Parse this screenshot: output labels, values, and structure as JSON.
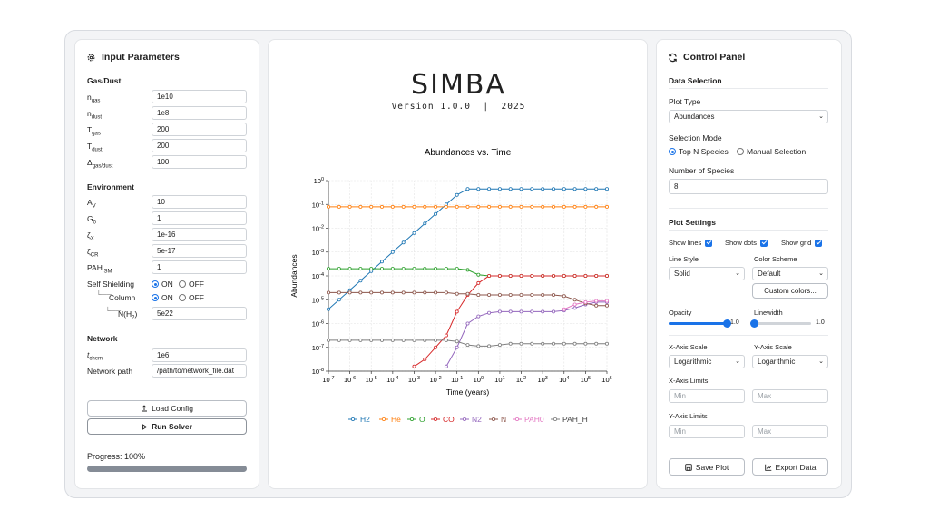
{
  "left": {
    "title": "Input Parameters",
    "gas_dust": {
      "heading": "Gas/Dust",
      "params": [
        {
          "sym": "n",
          "sub": "gas",
          "value": "1e10"
        },
        {
          "sym": "n",
          "sub": "dust",
          "value": "1e8"
        },
        {
          "sym": "T",
          "sub": "gas",
          "value": "200"
        },
        {
          "sym": "T",
          "sub": "dust",
          "value": "200"
        },
        {
          "sym": "Δ",
          "sub": "gas/dust",
          "value": "100"
        }
      ]
    },
    "environment": {
      "heading": "Environment",
      "params": [
        {
          "sym": "A",
          "sub": "V",
          "value": "10"
        },
        {
          "sym": "G",
          "sub": "0",
          "value": "1"
        },
        {
          "sym": "ζ",
          "sub": "X",
          "value": "1e-16"
        },
        {
          "sym": "ζ",
          "sub": "CR",
          "value": "5e-17"
        },
        {
          "sym": "PAH",
          "sub": "ISM",
          "value": "1"
        }
      ],
      "self_shielding_label": "Self Shielding",
      "column_label": "Column",
      "nh2_label": "N(H",
      "nh2_sub": "2",
      "nh2_close": ")",
      "nh2_value": "5e22",
      "on_label": "ON",
      "off_label": "OFF"
    },
    "network": {
      "heading": "Network",
      "tchem_sym": "t",
      "tchem_sub": "chem",
      "tchem_value": "1e6",
      "path_label": "Network path",
      "path_value": "/path/to/network_file.dat"
    },
    "load_config_label": "Load Config",
    "run_solver_label": "Run Solver",
    "progress_text": "Progress: 100%",
    "progress_fraction": 1.0
  },
  "header": {
    "app_name": "SIMBA",
    "version_line": "Version 1.0.0  |  2025"
  },
  "chart_data": {
    "type": "line",
    "title": "Abundances vs. Time",
    "xlabel": "Time (years)",
    "ylabel": "Abundances",
    "xscale": "log",
    "yscale": "log",
    "xlim": [
      -7,
      6
    ],
    "ylim": [
      -8,
      0
    ],
    "x_ticks": [
      "-7",
      "-6",
      "-5",
      "-4",
      "-3",
      "-2",
      "-1",
      "0",
      "1",
      "2",
      "3",
      "4",
      "5",
      "6"
    ],
    "y_ticks": [
      "0",
      "-1",
      "-2",
      "-3",
      "-4",
      "-5",
      "-6",
      "-7",
      "-8"
    ],
    "x_logs": [
      -7,
      -6.5,
      -6,
      -5.5,
      -5,
      -4.5,
      -4,
      -3.5,
      -3,
      -2.5,
      -2,
      -1.5,
      -1,
      -0.5,
      0,
      0.5,
      1,
      1.5,
      2,
      2.5,
      3,
      3.5,
      4,
      4.5,
      5,
      5.5,
      6
    ],
    "grid": true,
    "legend_position": "bottom",
    "series": [
      {
        "name": "H2",
        "color": "#1f77b4",
        "log_y": [
          -5.4,
          -5.0,
          -4.6,
          -4.2,
          -3.8,
          -3.4,
          -3.0,
          -2.6,
          -2.2,
          -1.8,
          -1.4,
          -1.0,
          -0.6,
          -0.35,
          -0.35,
          -0.35,
          -0.35,
          -0.35,
          -0.35,
          -0.35,
          -0.35,
          -0.35,
          -0.35,
          -0.35,
          -0.35,
          -0.35,
          -0.35
        ]
      },
      {
        "name": "He",
        "color": "#ff7f0e",
        "log_y": [
          -1.1,
          -1.1,
          -1.1,
          -1.1,
          -1.1,
          -1.1,
          -1.1,
          -1.1,
          -1.1,
          -1.1,
          -1.1,
          -1.1,
          -1.1,
          -1.1,
          -1.1,
          -1.1,
          -1.1,
          -1.1,
          -1.1,
          -1.1,
          -1.1,
          -1.1,
          -1.1,
          -1.1,
          -1.1,
          -1.1,
          -1.1
        ]
      },
      {
        "name": "O",
        "color": "#2ca02c",
        "log_y": [
          -3.7,
          -3.7,
          -3.7,
          -3.7,
          -3.7,
          -3.7,
          -3.7,
          -3.7,
          -3.7,
          -3.7,
          -3.7,
          -3.7,
          -3.7,
          -3.75,
          -3.95,
          -4.0,
          -4.0,
          -4.0,
          -4.0,
          -4.0,
          -4.0,
          -4.0,
          -4.0,
          -4.0,
          -4.0,
          -4.0,
          -4.0
        ]
      },
      {
        "name": "CO",
        "color": "#d62728",
        "log_y": [
          null,
          null,
          null,
          null,
          null,
          null,
          null,
          null,
          -7.8,
          -7.5,
          -7.0,
          -6.5,
          -5.5,
          -4.8,
          -4.3,
          -4.0,
          -4.0,
          -4.0,
          -4.0,
          -4.0,
          -4.0,
          -4.0,
          -4.0,
          -4.0,
          -4.0,
          -4.0,
          -4.0
        ]
      },
      {
        "name": "N2",
        "color": "#9467bd",
        "log_y": [
          null,
          null,
          null,
          null,
          null,
          null,
          null,
          null,
          null,
          null,
          null,
          -7.8,
          -7.0,
          -6.0,
          -5.7,
          -5.55,
          -5.5,
          -5.5,
          -5.5,
          -5.5,
          -5.5,
          -5.5,
          -5.45,
          -5.35,
          -5.2,
          -5.1,
          -5.1
        ]
      },
      {
        "name": "N",
        "color": "#8c564b",
        "log_y": [
          -4.7,
          -4.7,
          -4.7,
          -4.7,
          -4.7,
          -4.7,
          -4.7,
          -4.7,
          -4.7,
          -4.7,
          -4.7,
          -4.7,
          -4.75,
          -4.75,
          -4.8,
          -4.8,
          -4.8,
          -4.8,
          -4.8,
          -4.8,
          -4.8,
          -4.8,
          -4.85,
          -5.0,
          -5.15,
          -5.25,
          -5.25
        ]
      },
      {
        "name": "PAH0",
        "color": "#e377c2",
        "log_y": [
          null,
          null,
          null,
          null,
          null,
          null,
          null,
          null,
          null,
          null,
          null,
          null,
          null,
          null,
          null,
          null,
          null,
          null,
          null,
          null,
          null,
          null,
          -5.4,
          -5.2,
          -5.1,
          -5.05,
          -5.05
        ]
      },
      {
        "name": "PAH_H",
        "color": "#7f7f7f",
        "log_y": [
          -6.7,
          -6.7,
          -6.7,
          -6.7,
          -6.7,
          -6.7,
          -6.7,
          -6.7,
          -6.7,
          -6.7,
          -6.7,
          -6.7,
          -6.75,
          -6.9,
          -6.95,
          -6.95,
          -6.9,
          -6.85,
          -6.85,
          -6.85,
          -6.85,
          -6.85,
          -6.85,
          -6.85,
          -6.85,
          -6.85,
          -6.85
        ]
      }
    ]
  },
  "right": {
    "title": "Control Panel",
    "data_selection_heading": "Data Selection",
    "plot_type_label": "Plot Type",
    "plot_type_value": "Abundances",
    "selection_mode_label": "Selection Mode",
    "mode_top_n": "Top N Species",
    "mode_manual": "Manual Selection",
    "num_species_label": "Number of Species",
    "num_species_value": "8",
    "plot_settings_heading": "Plot Settings",
    "show_lines": "Show lines",
    "show_dots": "Show dots",
    "show_grid": "Show grid",
    "line_style_label": "Line Style",
    "line_style_value": "Solid",
    "color_scheme_label": "Color Scheme",
    "color_scheme_value": "Default",
    "custom_colors_label": "Custom colors...",
    "opacity_label": "Opacity",
    "opacity_value": "1.0",
    "opacity_level": 1.0,
    "linewidth_label": "Linewidth",
    "linewidth_value": "1.0",
    "linewidth_level": 0.0,
    "x_scale_label": "X-Axis Scale",
    "x_scale_value": "Logarithmic",
    "y_scale_label": "Y-Axis Scale",
    "y_scale_value": "Logarithmic",
    "x_limits_label": "X-Axis Limits",
    "y_limits_label": "Y-Axis Limits",
    "min_placeholder": "Min",
    "max_placeholder": "Max",
    "save_plot_label": "Save Plot",
    "export_data_label": "Export Data"
  }
}
